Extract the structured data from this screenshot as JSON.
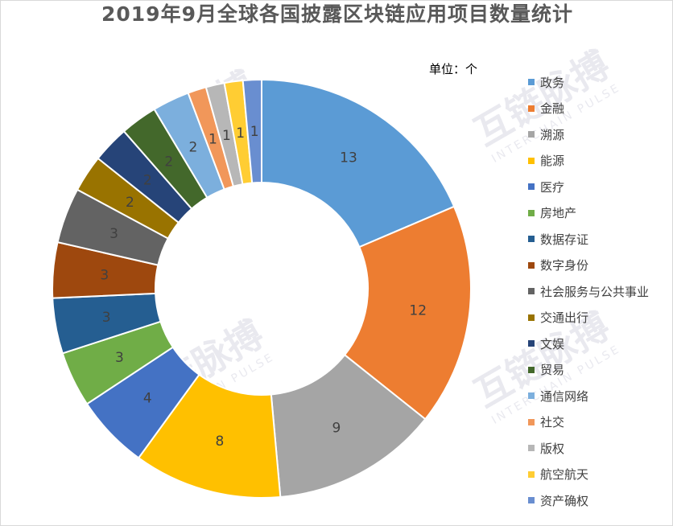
{
  "chart_data": {
    "type": "pie",
    "variant": "doughnut",
    "title": "2019年9月全球各国披露区块链应用项目数量统计",
    "unit_label": "单位：个",
    "legend_position": "right",
    "data_labels": true,
    "categories": [
      "政务",
      "金融",
      "溯源",
      "能源",
      "医疗",
      "房地产",
      "数据存证",
      "数字身份",
      "社会服务与公共事业",
      "交通出行",
      "文娱",
      "贸易",
      "通信网络",
      "社交",
      "版权",
      "航空航天",
      "资产确权"
    ],
    "values": [
      13,
      12,
      9,
      8,
      4,
      3,
      3,
      3,
      3,
      2,
      2,
      2,
      2,
      1,
      1,
      1,
      1
    ],
    "colors": [
      "#5b9bd5",
      "#ed7d31",
      "#a5a5a5",
      "#ffc000",
      "#4472c4",
      "#70ad47",
      "#255e91",
      "#9e480e",
      "#636363",
      "#997300",
      "#264478",
      "#43682b",
      "#7cafdd",
      "#f1975a",
      "#b7b7b7",
      "#ffcd33",
      "#698ed0"
    ],
    "label_colors": [
      "#404040",
      "#404040",
      "#404040",
      "#404040",
      "#404040",
      "#404040",
      "#404040",
      "#404040",
      "#404040",
      "#404040",
      "#404040",
      "#404040",
      "#404040",
      "#404040",
      "#404040",
      "#404040",
      "#404040"
    ]
  },
  "watermark": {
    "text": "互链脉搏",
    "subtext": "INTERCHAIN PULSE"
  }
}
